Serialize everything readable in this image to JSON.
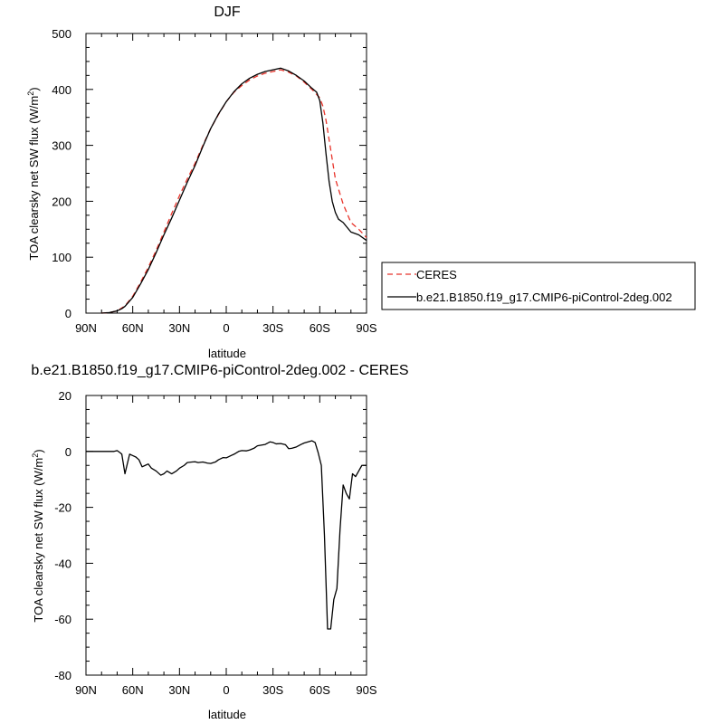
{
  "chart_data": [
    {
      "type": "line",
      "title": "DJF",
      "xlabel": "latitude",
      "ylabel": "TOA clearsky net SW flux (W/m",
      "ylabel_sup": "2",
      "ylabel_end": ")",
      "xlim": [
        90,
        -90
      ],
      "ylim": [
        0,
        500
      ],
      "xticks": [
        90,
        60,
        30,
        0,
        -30,
        -60,
        -90
      ],
      "xtick_labels": [
        "90N",
        "60N",
        "30N",
        "0",
        "30S",
        "60S",
        "90S"
      ],
      "yticks": [
        0,
        100,
        200,
        300,
        400,
        500
      ],
      "ytick_labels": [
        "0",
        "100",
        "200",
        "300",
        "400",
        "500"
      ],
      "legend_position": "right",
      "series": [
        {
          "name": "CERES",
          "color": "#e8332a",
          "dash": "dashed",
          "x": [
            80,
            75,
            70,
            65,
            60,
            55,
            50,
            45,
            40,
            35,
            30,
            25,
            20,
            15,
            10,
            5,
            0,
            -5,
            -10,
            -15,
            -20,
            -25,
            -30,
            -35,
            -40,
            -45,
            -50,
            -55,
            -60,
            -62,
            -64,
            -66,
            -68,
            -70,
            -75,
            -80,
            -85,
            -90
          ],
          "y": [
            0,
            1,
            4,
            13,
            30,
            55,
            82,
            112,
            145,
            178,
            210,
            240,
            268,
            300,
            330,
            355,
            378,
            395,
            407,
            417,
            424,
            429,
            432,
            435,
            431,
            424,
            413,
            400,
            385,
            370,
            345,
            310,
            275,
            240,
            195,
            162,
            150,
            135
          ]
        },
        {
          "name": "b.e21.B1850.f19_g17.CMIP6-piControl-2deg.002",
          "color": "#000000",
          "dash": "solid",
          "x": [
            80,
            75,
            70,
            67,
            65,
            60,
            55,
            50,
            45,
            40,
            35,
            30,
            25,
            20,
            15,
            10,
            5,
            0,
            -5,
            -10,
            -15,
            -20,
            -25,
            -30,
            -35,
            -40,
            -45,
            -50,
            -55,
            -58,
            -60,
            -62,
            -64,
            -66,
            -68,
            -70,
            -72,
            -75,
            -80,
            -85,
            -90
          ],
          "y": [
            0,
            1,
            4,
            8,
            12,
            28,
            52,
            78,
            108,
            140,
            170,
            202,
            234,
            264,
            298,
            330,
            356,
            378,
            396,
            410,
            420,
            427,
            432,
            435,
            438,
            433,
            425,
            415,
            402,
            395,
            380,
            340,
            285,
            235,
            200,
            180,
            168,
            162,
            145,
            140,
            130
          ]
        }
      ]
    },
    {
      "type": "line",
      "title": "b.e21.B1850.f19_g17.CMIP6-piControl-2deg.002 - CERES",
      "xlabel": "latitude",
      "ylabel": "TOA clearsky net SW flux (W/m",
      "ylabel_sup": "2",
      "ylabel_end": ")",
      "xlim": [
        90,
        -90
      ],
      "ylim": [
        -80,
        20
      ],
      "xticks": [
        90,
        60,
        30,
        0,
        -30,
        -60,
        -90
      ],
      "xtick_labels": [
        "90N",
        "60N",
        "30N",
        "0",
        "30S",
        "60S",
        "90S"
      ],
      "yticks": [
        -80,
        -60,
        -40,
        -20,
        0,
        20
      ],
      "ytick_labels": [
        "-80",
        "-60",
        "-40",
        "-20",
        "0",
        "20"
      ],
      "series": [
        {
          "color": "#000000",
          "dash": "solid",
          "x": [
            90,
            85,
            80,
            75,
            72,
            70,
            68,
            67,
            65,
            62,
            60,
            58,
            56,
            54,
            52,
            50,
            48,
            45,
            42,
            40,
            38,
            35,
            32,
            30,
            27,
            25,
            22,
            20,
            18,
            15,
            12,
            10,
            7,
            5,
            2,
            0,
            -3,
            -5,
            -8,
            -10,
            -13,
            -15,
            -18,
            -20,
            -22,
            -25,
            -28,
            -30,
            -32,
            -35,
            -38,
            -40,
            -42,
            -45,
            -48,
            -50,
            -53,
            -55,
            -57,
            -59,
            -61,
            -63,
            -65,
            -67,
            -69,
            -71,
            -73,
            -75,
            -77,
            -79,
            -81,
            -83,
            -85,
            -87,
            -90
          ],
          "y": [
            0,
            0,
            0,
            0,
            0,
            0.3,
            -0.5,
            -1,
            -8,
            -1,
            -1.5,
            -2,
            -3,
            -5.5,
            -5,
            -4.5,
            -6,
            -7,
            -8.5,
            -8,
            -7,
            -8,
            -7,
            -6,
            -5,
            -4,
            -3.8,
            -3.7,
            -4,
            -3.8,
            -4.2,
            -4.3,
            -3.8,
            -3,
            -2.2,
            -2.3,
            -1.5,
            -1,
            0,
            0.3,
            0.2,
            0.5,
            1.2,
            2,
            2.2,
            2.5,
            3.4,
            3.2,
            2.7,
            2.8,
            2.4,
            1,
            1.1,
            1.6,
            2.5,
            3,
            3.5,
            3.8,
            3.2,
            -0.5,
            -5,
            -30,
            -63.5,
            -63.5,
            -53,
            -49,
            -28,
            -12,
            -15,
            -17,
            -8,
            -9,
            -7,
            -5,
            -5
          ]
        }
      ]
    }
  ]
}
